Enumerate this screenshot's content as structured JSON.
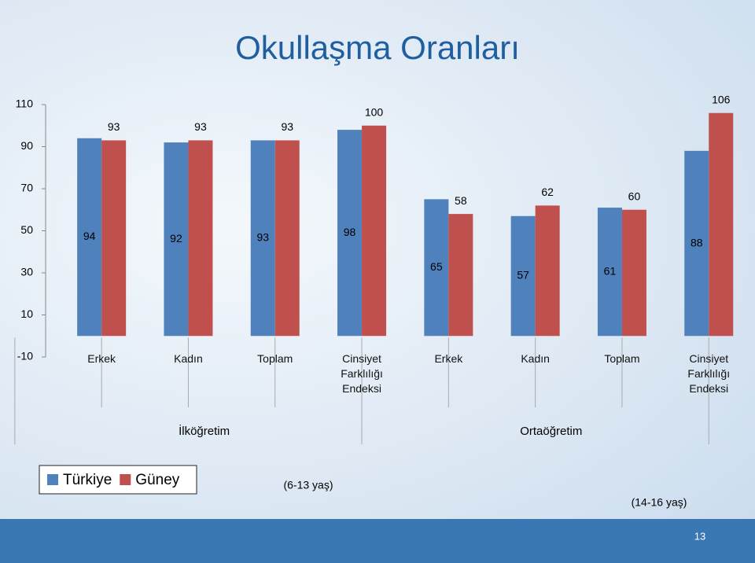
{
  "chart_data": {
    "type": "bar",
    "title": "Okullaşma Oranları",
    "categories": [
      "Erkek",
      "Kadın",
      "Toplam",
      "Cinsiyet Farklılığı Endeksi",
      "Erkek",
      "Kadın",
      "Toplam",
      "Cinsiyet Farklılığı Endeksi"
    ],
    "series": [
      {
        "name": "Türkiye",
        "color": "#4f81bd",
        "values": [
          94,
          92,
          93,
          98,
          65,
          57,
          61,
          88
        ]
      },
      {
        "name": "Güney",
        "color": "#c0504d",
        "values": [
          93,
          93,
          93,
          100,
          58,
          62,
          60,
          106
        ]
      }
    ],
    "groups": [
      {
        "name": "İlköğretim",
        "note": "(6-13 yaş)"
      },
      {
        "name": "Ortaöğretim",
        "note": "(14-16 yaş)"
      }
    ],
    "ylim": [
      -10,
      110
    ],
    "yticks": [
      -10,
      10,
      30,
      50,
      70,
      90,
      110
    ]
  },
  "page_number": 13
}
